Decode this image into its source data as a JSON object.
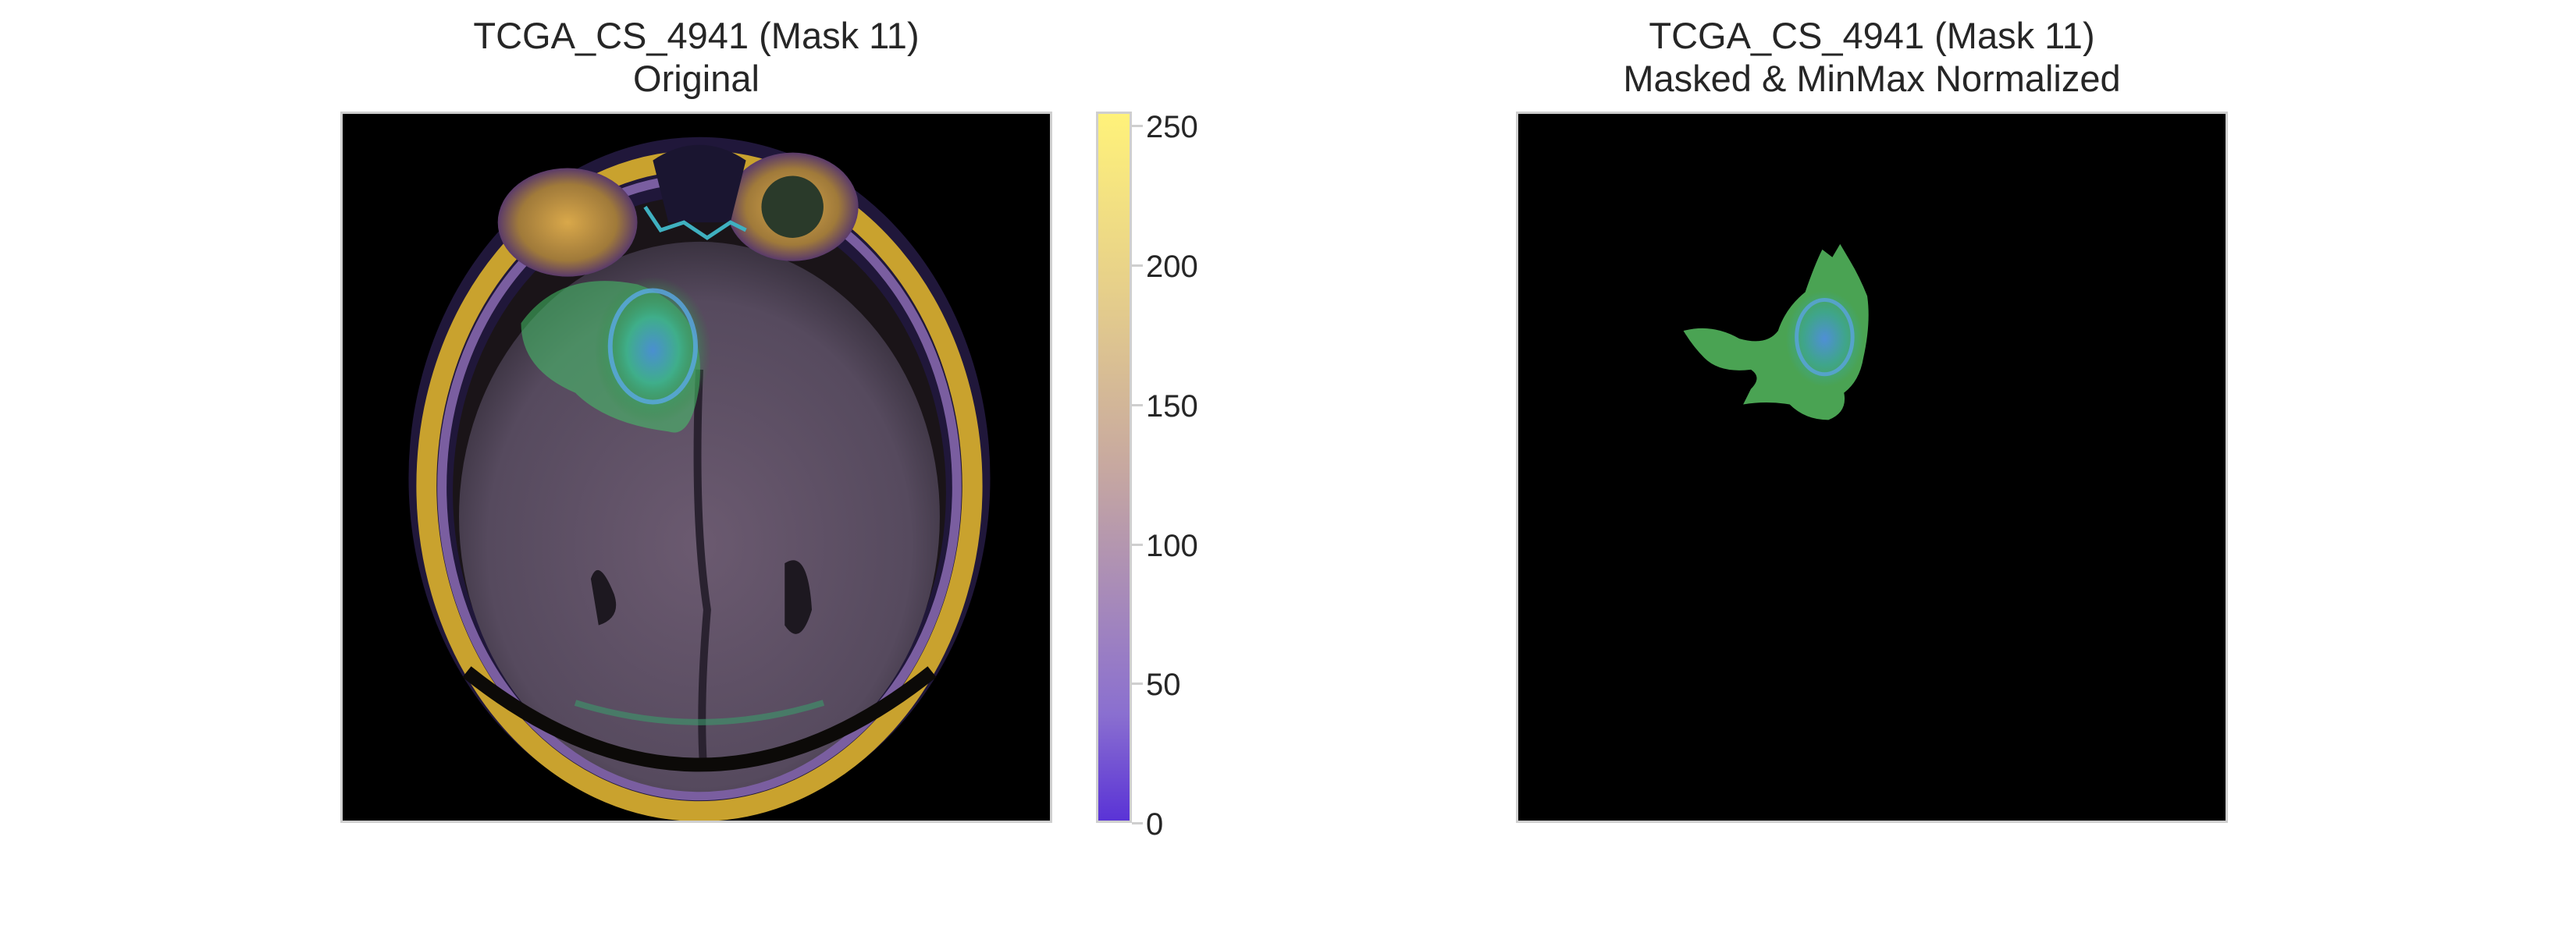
{
  "left_panel": {
    "title_line1": "TCGA_CS_4941 (Mask 11)",
    "title_line2": "Original"
  },
  "right_panel": {
    "title_line1": "TCGA_CS_4941 (Mask 11)",
    "title_line2": "Masked & MinMax Normalized"
  },
  "colorbar": {
    "ticks": [
      "0",
      "50",
      "100",
      "150",
      "200",
      "250"
    ],
    "range": [
      0,
      255
    ],
    "colors": {
      "bottom": "#5a33d6",
      "low": "#8a6fd0",
      "mid": "#c7a8a0",
      "high": "#e6cf8a",
      "top": "#fff27a"
    }
  },
  "colors": {
    "frame_border": "#cfcfcf",
    "image_background": "#000000",
    "tumor": "#45c56a",
    "brain": "#5c4f66",
    "skull_ring": "#c9a22e"
  }
}
